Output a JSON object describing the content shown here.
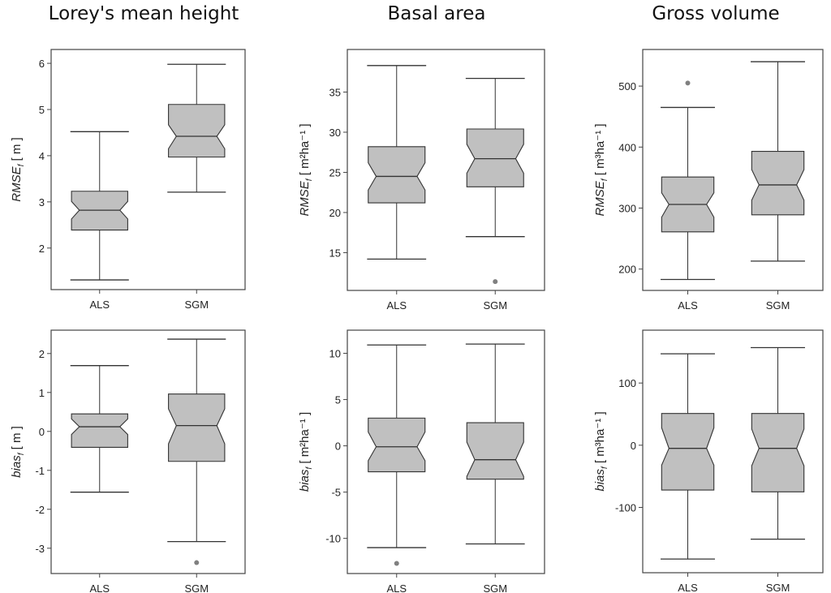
{
  "columns": [
    "Lorey's mean height",
    "Basal area",
    "Gross volume"
  ],
  "chart_data": [
    {
      "type": "box",
      "column": "Lorey's mean height",
      "ylabel_var": "RMSE",
      "ylabel_sub": "f",
      "ylabel_unit": "m",
      "ylabel_unit_sup": "",
      "categories": [
        "ALS",
        "SGM"
      ],
      "ylim": [
        1.1,
        6.3
      ],
      "yticks": [
        "2",
        "3",
        "4",
        "5",
        "6"
      ],
      "boxes": [
        {
          "name": "ALS",
          "whisker_low": 1.31,
          "q1": 2.39,
          "median": 2.82,
          "q3": 3.23,
          "whisker_high": 4.52,
          "notch_low": 2.63,
          "notch_high": 3.01,
          "outliers": []
        },
        {
          "name": "SGM",
          "whisker_low": 3.21,
          "q1": 3.97,
          "median": 4.42,
          "q3": 5.11,
          "whisker_high": 5.98,
          "notch_low": 4.15,
          "notch_high": 4.67,
          "outliers": []
        }
      ]
    },
    {
      "type": "box",
      "column": "Basal area",
      "ylabel_var": "RMSE",
      "ylabel_sub": "f",
      "ylabel_unit": "m²ha⁻¹",
      "ylabel_unit_sup": "",
      "categories": [
        "ALS",
        "SGM"
      ],
      "ylim": [
        10.3,
        40.3
      ],
      "yticks": [
        "15",
        "20",
        "25",
        "30",
        "35"
      ],
      "boxes": [
        {
          "name": "ALS",
          "whisker_low": 14.2,
          "q1": 21.2,
          "median": 24.5,
          "q3": 28.2,
          "whisker_high": 38.3,
          "notch_low": 22.8,
          "notch_high": 26.2,
          "outliers": []
        },
        {
          "name": "SGM",
          "whisker_low": 17.0,
          "q1": 23.2,
          "median": 26.7,
          "q3": 30.4,
          "whisker_high": 36.7,
          "notch_low": 24.9,
          "notch_high": 28.5,
          "outliers": [
            11.4
          ]
        }
      ]
    },
    {
      "type": "box",
      "column": "Gross volume",
      "ylabel_var": "RMSE",
      "ylabel_sub": "f",
      "ylabel_unit": "m³ha⁻¹",
      "ylabel_unit_sup": "",
      "categories": [
        "ALS",
        "SGM"
      ],
      "ylim": [
        165,
        560
      ],
      "yticks": [
        "200",
        "300",
        "400",
        "500"
      ],
      "boxes": [
        {
          "name": "ALS",
          "whisker_low": 183,
          "q1": 261,
          "median": 306,
          "q3": 351,
          "whisker_high": 465,
          "notch_low": 285,
          "notch_high": 325,
          "outliers": [
            505
          ]
        },
        {
          "name": "SGM",
          "whisker_low": 213,
          "q1": 289,
          "median": 338,
          "q3": 393,
          "whisker_high": 540,
          "notch_low": 313,
          "notch_high": 363,
          "outliers": []
        }
      ]
    },
    {
      "type": "box",
      "column": "Lorey's mean height",
      "ylabel_var": "bias",
      "ylabel_sub": "f",
      "ylabel_unit": "m",
      "ylabel_unit_sup": "",
      "categories": [
        "ALS",
        "SGM"
      ],
      "ylim": [
        -3.65,
        2.6
      ],
      "yticks": [
        "-3",
        "-2",
        "-1",
        "0",
        "1",
        "2"
      ],
      "boxes": [
        {
          "name": "ALS",
          "whisker_low": -1.56,
          "q1": -0.41,
          "median": 0.12,
          "q3": 0.45,
          "whisker_high": 1.69,
          "notch_low": -0.08,
          "notch_high": 0.32,
          "outliers": []
        },
        {
          "name": "SGM",
          "whisker_low": -2.83,
          "q1": -0.77,
          "median": 0.15,
          "q3": 0.96,
          "whisker_high": 2.37,
          "notch_low": -0.32,
          "notch_high": 0.58,
          "outliers": [
            -3.37
          ]
        }
      ]
    },
    {
      "type": "box",
      "column": "Basal area",
      "ylabel_var": "bias",
      "ylabel_sub": "f",
      "ylabel_unit": "m²ha⁻¹",
      "ylabel_unit_sup": "",
      "categories": [
        "ALS",
        "SGM"
      ],
      "ylim": [
        -13.8,
        12.5
      ],
      "yticks": [
        "-10",
        "-5",
        "0",
        "5",
        "10"
      ],
      "boxes": [
        {
          "name": "ALS",
          "whisker_low": -11.0,
          "q1": -2.8,
          "median": -0.1,
          "q3": 3.0,
          "whisker_high": 10.9,
          "notch_low": -1.6,
          "notch_high": 1.5,
          "outliers": [
            -12.7
          ]
        },
        {
          "name": "SGM",
          "whisker_low": -10.6,
          "q1": -3.6,
          "median": -1.5,
          "q3": 2.5,
          "whisker_high": 11.0,
          "notch_low": -3.3,
          "notch_high": 0.4,
          "outliers": []
        }
      ]
    },
    {
      "type": "box",
      "column": "Gross volume",
      "ylabel_var": "bias",
      "ylabel_sub": "f",
      "ylabel_unit": "m³ha⁻¹",
      "ylabel_unit_sup": "",
      "categories": [
        "ALS",
        "SGM"
      ],
      "ylim": [
        -205,
        185
      ],
      "yticks": [
        "-100",
        "0",
        "100"
      ],
      "boxes": [
        {
          "name": "ALS",
          "whisker_low": -183,
          "q1": -72,
          "median": -5,
          "q3": 51,
          "whisker_high": 147,
          "notch_low": -32,
          "notch_high": 28,
          "outliers": []
        },
        {
          "name": "SGM",
          "whisker_low": -151,
          "q1": -75,
          "median": -5,
          "q3": 51,
          "whisker_high": 157,
          "notch_low": -33,
          "notch_high": 26,
          "outliers": []
        }
      ]
    }
  ],
  "colors": {
    "box_fill": "#c0c0c0",
    "outline": "#333333",
    "outlier": "#808080"
  }
}
